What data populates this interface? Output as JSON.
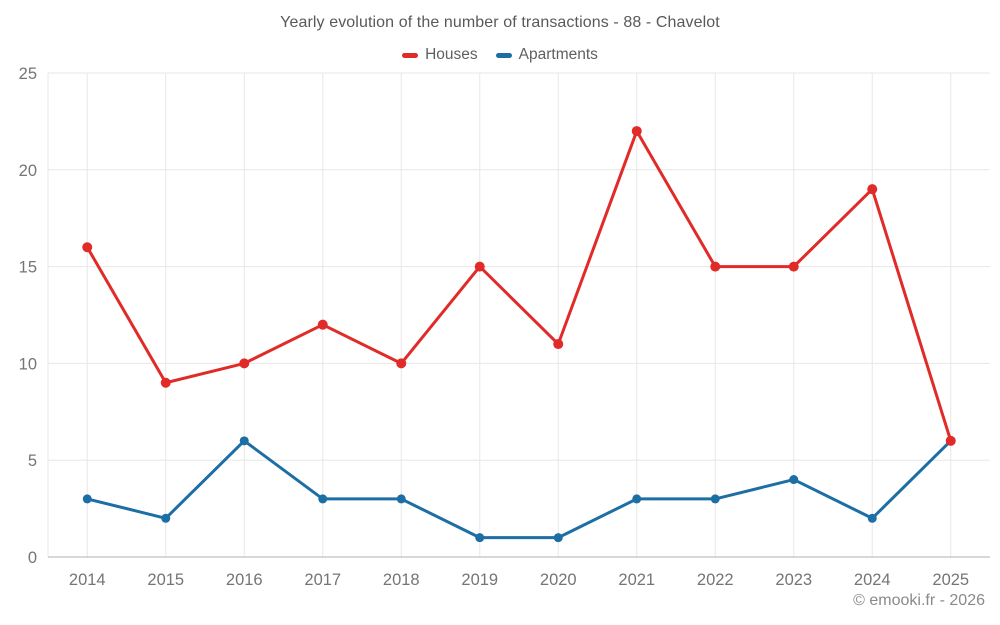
{
  "header": {
    "title": "Yearly evolution of the number of transactions - 88 - Chavelot"
  },
  "chart_data": {
    "type": "line",
    "title": "Yearly evolution of the number of transactions - 88 - Chavelot",
    "categories": [
      "2014",
      "2015",
      "2016",
      "2017",
      "2018",
      "2019",
      "2020",
      "2021",
      "2022",
      "2023",
      "2024",
      "2025"
    ],
    "series": [
      {
        "name": "Houses",
        "color": "#e02b28",
        "marker_radius": 5,
        "values": [
          16,
          9,
          10,
          12,
          10,
          15,
          11,
          22,
          15,
          15,
          19,
          6
        ]
      },
      {
        "name": "Apartments",
        "color": "#1c6ea4",
        "marker_radius": 4.5,
        "values": [
          3,
          2,
          6,
          3,
          3,
          1,
          1,
          3,
          3,
          4,
          2,
          6
        ]
      }
    ],
    "xlabel": "",
    "ylabel": "",
    "ylim": [
      0,
      25
    ],
    "yticks": [
      0,
      5,
      10,
      15,
      20,
      25
    ],
    "grid": true,
    "legend_position": "top"
  },
  "footer": {
    "copyright": "© emooki.fr - 2026"
  },
  "colors": {
    "grid": "#e7e7e7",
    "axis": "#b0b0b0",
    "tick_label": "#757575",
    "title_text": "#595959",
    "legend_text": "#5f5f5f",
    "footer_text": "#8a8a8a"
  }
}
